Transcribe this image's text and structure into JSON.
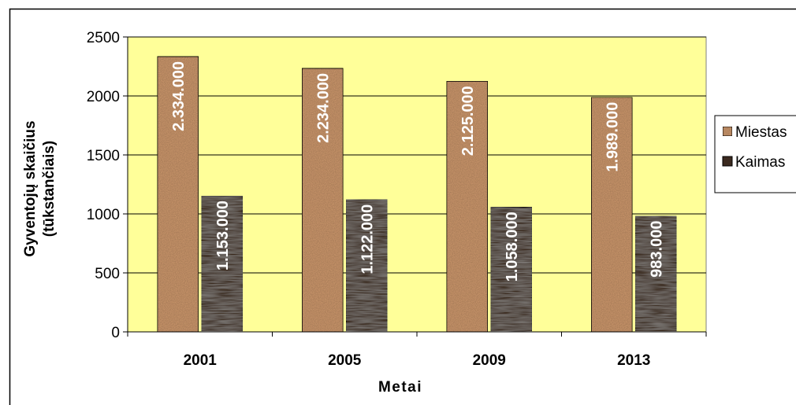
{
  "chart_data": {
    "type": "bar",
    "title": "",
    "xlabel": "Metai",
    "ylabel_line1": "Gyventojų skaičius",
    "ylabel_line2": "(tūkstančiais)",
    "categories": [
      "2001",
      "2005",
      "2009",
      "2013"
    ],
    "ylim": [
      0,
      2500
    ],
    "yticks": [
      0,
      500,
      1000,
      1500,
      2000,
      2500
    ],
    "grid": true,
    "legend_position": "right",
    "series": [
      {
        "name": "Miestas",
        "values": [
          2334,
          2234,
          2125,
          1989
        ],
        "labels": [
          "2.334.000",
          "2.234.000",
          "2.125.000",
          "1.989.000"
        ],
        "color": "#c8946a"
      },
      {
        "name": "Kaimas",
        "values": [
          1153,
          1122,
          1058,
          983
        ],
        "labels": [
          "1.153.000",
          "1.122.000",
          "1.058.000",
          "983.000"
        ],
        "color": "#3b2a1f"
      }
    ],
    "plot_background": "#ffff99"
  }
}
